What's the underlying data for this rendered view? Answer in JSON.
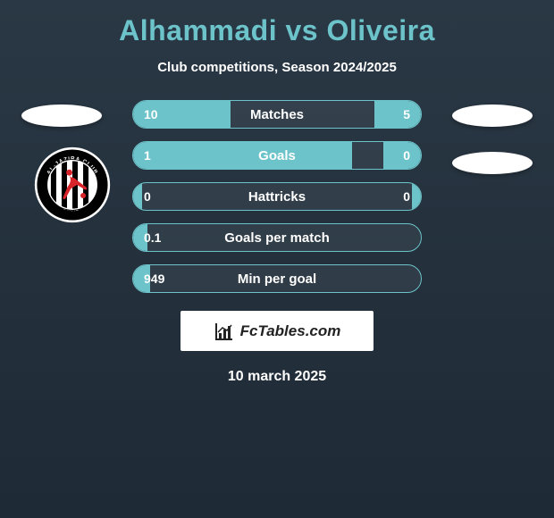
{
  "header": {
    "title": "Alhammadi vs Oliveira",
    "subtitle": "Club competitions, Season 2024/2025"
  },
  "colors": {
    "accent": "#6cc3c9",
    "bg_top": "#2a3845",
    "bg_bottom": "#1e2a35",
    "ellipse": "#ffffff"
  },
  "stats": [
    {
      "label": "Matches",
      "left_val": "10",
      "right_val": "5",
      "left_pct": 34,
      "right_pct": 16
    },
    {
      "label": "Goals",
      "left_val": "1",
      "right_val": "0",
      "left_pct": 76,
      "right_pct": 13
    },
    {
      "label": "Hattricks",
      "left_val": "0",
      "right_val": "0",
      "left_pct": 3,
      "right_pct": 3
    },
    {
      "label": "Goals per match",
      "left_val": "0.1",
      "right_val": "",
      "left_pct": 5,
      "right_pct": 0
    },
    {
      "label": "Min per goal",
      "left_val": "949",
      "right_val": "",
      "left_pct": 6,
      "right_pct": 0
    }
  ],
  "footer": {
    "logo_text": "FcTables.com",
    "date": "10 march 2025"
  },
  "left_club": {
    "name": "Al-Jazira Club",
    "ring_text": "AL-JAZIRA CLUB · ABU DHABI-UAE",
    "colors": {
      "outer": "#ffffff",
      "ring": "#000000",
      "inner": "#ffffff",
      "accent": "#d8232a"
    }
  }
}
